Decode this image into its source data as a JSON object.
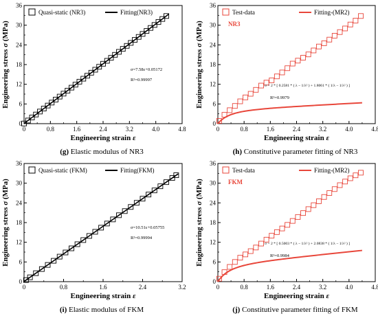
{
  "chart_data": [
    {
      "id": "g",
      "type": "scatter",
      "caption_letter": "(g)",
      "caption_text": "Elastic modulus of NR3",
      "xlabel": "Engineering strain",
      "xsym": "ε",
      "ylabel": "Engineering stress",
      "ysym": "σ",
      "yunit": "(MPa)",
      "xlim": [
        0,
        4.8
      ],
      "ylim": [
        0,
        36
      ],
      "xticks": [
        "0",
        "0.8",
        "1.6",
        "2.4",
        "3.2",
        "4.0",
        "4.8"
      ],
      "yticks": [
        "0",
        "6",
        "12",
        "18",
        "24",
        "30",
        "36"
      ],
      "legend": [
        "Quasi-static (NR3)",
        "Fitting(NR3)"
      ],
      "series_color": "#000000",
      "marker_x": [
        0.0,
        0.12,
        0.24,
        0.36,
        0.48,
        0.6,
        0.72,
        0.84,
        0.96,
        1.08,
        1.2,
        1.32,
        1.44,
        1.56,
        1.68,
        1.8,
        1.92,
        2.04,
        2.16,
        2.28,
        2.4,
        2.52,
        2.64,
        2.76,
        2.88,
        3.0,
        3.12,
        3.24,
        3.36,
        3.48,
        3.6,
        3.72,
        3.84,
        3.96,
        4.08,
        4.2,
        4.32
      ],
      "marker_y": [
        0.05,
        0.96,
        1.87,
        2.78,
        3.69,
        4.6,
        5.51,
        6.42,
        7.33,
        8.24,
        9.15,
        10.06,
        10.97,
        11.88,
        12.79,
        13.7,
        14.61,
        15.52,
        16.43,
        17.34,
        18.25,
        19.15,
        20.06,
        20.97,
        21.88,
        22.79,
        23.7,
        24.61,
        25.52,
        26.43,
        27.34,
        28.25,
        29.16,
        30.07,
        30.98,
        31.89,
        32.8
      ],
      "fit_x": [
        0,
        4.4
      ],
      "fit_y": [
        0.05,
        33.4
      ],
      "eq1": "σ=7.58ε+0.05172",
      "eq2": "R²=0.99997"
    },
    {
      "id": "h",
      "type": "scatter",
      "caption_letter": "(h)",
      "caption_text": "Constitutive parameter fitting of NR3",
      "xlabel": "Engineering strain",
      "xsym": "ε",
      "ylabel": "Engineering stress",
      "ysym": "σ",
      "yunit": "(MPa)",
      "xlim": [
        0,
        4.8
      ],
      "ylim": [
        0,
        36
      ],
      "xticks": [
        "0",
        "0.8",
        "1.6",
        "2.4",
        "3.2",
        "4.0",
        "4.8"
      ],
      "yticks": [
        "0",
        "6",
        "12",
        "18",
        "24",
        "30",
        "36"
      ],
      "legend": [
        "Test-data",
        "Fitting-(MR2)"
      ],
      "series_color": "#e8463a",
      "tag": "NR3",
      "C10": 0.2581,
      "C01": 1.8061,
      "coef1": "0.2581",
      "coef2": "1.8061",
      "eq_r2": "R²=0.9979",
      "marker_x": [
        0.04,
        0.2,
        0.36,
        0.52,
        0.68,
        0.84,
        1.0,
        1.16,
        1.32,
        1.48,
        1.64,
        1.8,
        1.96,
        2.12,
        2.28,
        2.44,
        2.6,
        2.76,
        2.92,
        3.08,
        3.24,
        3.4,
        3.56,
        3.72,
        3.88,
        4.04,
        4.2,
        4.36
      ],
      "marker_y": [
        0.85,
        2.7,
        4.1,
        5.4,
        6.8,
        8.0,
        9.1,
        10.3,
        11.6,
        12.5,
        13.2,
        14.4,
        15.6,
        16.9,
        18.3,
        19.2,
        20.1,
        21.1,
        22.3,
        23.5,
        24.5,
        25.6,
        26.8,
        27.9,
        29.0,
        30.2,
        31.4,
        32.8
      ]
    },
    {
      "id": "i",
      "type": "scatter",
      "caption_letter": "(i)",
      "caption_text": "Elastic modulus of FKM",
      "xlabel": "Engineering strain",
      "xsym": "ε",
      "ylabel": "Engineering stress",
      "ysym": "σ",
      "yunit": "(MPa)",
      "xlim": [
        0,
        3.2
      ],
      "ylim": [
        0,
        36
      ],
      "xticks": [
        "0",
        "0.8",
        "1.6",
        "2.4",
        "3.2"
      ],
      "yticks": [
        "0",
        "6",
        "12",
        "18",
        "24",
        "30",
        "36"
      ],
      "legend": [
        "Quasi-static (FKM)",
        "Fitting(FKM)"
      ],
      "series_color": "#000000",
      "marker_x": [
        0.04,
        0.12,
        0.24,
        0.36,
        0.48,
        0.6,
        0.72,
        0.84,
        0.96,
        1.08,
        1.2,
        1.32,
        1.44,
        1.56,
        1.68,
        1.8,
        1.92,
        2.04,
        2.16,
        2.28,
        2.4,
        2.52,
        2.64,
        2.76,
        2.88,
        3.0,
        3.08
      ],
      "marker_y": [
        0.48,
        1.32,
        2.58,
        3.84,
        5.1,
        6.36,
        7.62,
        8.89,
        10.15,
        11.41,
        12.67,
        13.93,
        15.19,
        16.45,
        17.71,
        18.97,
        20.24,
        21.5,
        22.76,
        24.02,
        25.28,
        26.54,
        27.8,
        29.06,
        30.32,
        31.59,
        32.43
      ],
      "fit_x": [
        0,
        3.12
      ],
      "fit_y": [
        0.06,
        32.85
      ],
      "eq1": "σ=10.51ε+0.05755",
      "eq2": "R²=0.99994"
    },
    {
      "id": "j",
      "type": "scatter",
      "caption_letter": "(j)",
      "caption_text": "Constitutive parameter fitting of FKM",
      "xlabel": "Engineering strain",
      "xsym": "ε",
      "ylabel": "Engineering stress",
      "ysym": "σ",
      "yunit": "(MPa)",
      "xlim": [
        0,
        4.8
      ],
      "ylim": [
        0,
        36
      ],
      "xticks": [
        "0",
        "0.8",
        "1.6",
        "2.4",
        "3.2",
        "4.0",
        "4.8"
      ],
      "yticks": [
        "0",
        "6",
        "12",
        "18",
        "24",
        "30",
        "36"
      ],
      "legend": [
        "Test-data",
        "Fitting-(MR2)"
      ],
      "series_color": "#e8463a",
      "tag": "FKM",
      "C10": 0.5003,
      "C01": 2.0838,
      "coef1": "0.5003",
      "coef2": "2.0838",
      "eq_r2": "R²=0.9984",
      "marker_x": [
        0.04,
        0.2,
        0.36,
        0.52,
        0.68,
        0.84,
        1.0,
        1.16,
        1.32,
        1.48,
        1.64,
        1.8,
        1.96,
        2.12,
        2.28,
        2.44,
        2.6,
        2.76,
        2.92,
        3.08,
        3.24,
        3.4,
        3.56,
        3.72,
        3.88,
        4.04,
        4.2,
        4.36
      ],
      "marker_y": [
        0.9,
        2.9,
        4.5,
        6.0,
        7.3,
        8.3,
        9.3,
        10.4,
        11.6,
        12.8,
        14.0,
        15.1,
        16.2,
        17.3,
        18.5,
        19.7,
        20.9,
        22.1,
        23.3,
        24.5,
        25.8,
        27.0,
        28.2,
        29.4,
        30.5,
        31.5,
        32.4,
        33.2
      ]
    }
  ]
}
